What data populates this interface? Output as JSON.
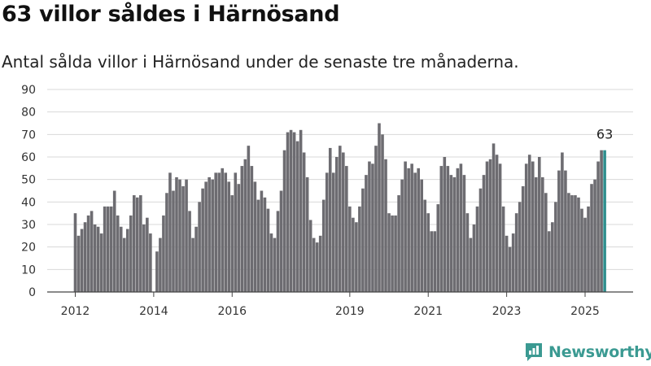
{
  "title": "63 villor såldes i Härnösand",
  "subtitle": "Antal sålda villor i Härnösand under de senaste tre månaderna.",
  "brand": "Newsworthy",
  "colors": {
    "bar": "#6d6c71",
    "highlight": "#2f8f8e",
    "grid": "#d8d8d8",
    "brand": "#3b9a92"
  },
  "chart_data": {
    "type": "bar",
    "ylim": [
      0,
      90
    ],
    "yticks": [
      0,
      10,
      20,
      30,
      40,
      50,
      60,
      70,
      80,
      90
    ],
    "xticks": [
      {
        "label": "2012",
        "month": "2012-01"
      },
      {
        "label": "2014",
        "month": "2014-01"
      },
      {
        "label": "2016",
        "month": "2016-01"
      },
      {
        "label": "2019",
        "month": "2019-01"
      },
      {
        "label": "2021",
        "month": "2021-01"
      },
      {
        "label": "2023",
        "month": "2023-01"
      },
      {
        "label": "2025",
        "month": "2025-01"
      }
    ],
    "start_month": "2012-01",
    "values": [
      35,
      25,
      28,
      31,
      34,
      36,
      30,
      29,
      26,
      38,
      38,
      38,
      45,
      34,
      29,
      24,
      28,
      34,
      43,
      42,
      43,
      30,
      33,
      26,
      null,
      18,
      24,
      34,
      44,
      53,
      45,
      51,
      50,
      47,
      50,
      36,
      24,
      29,
      40,
      46,
      49,
      51,
      50,
      53,
      53,
      55,
      53,
      49,
      43,
      53,
      48,
      56,
      59,
      65,
      56,
      49,
      41,
      45,
      42,
      37,
      26,
      24,
      36,
      45,
      63,
      71,
      72,
      71,
      67,
      72,
      62,
      51,
      32,
      24,
      22,
      25,
      41,
      53,
      64,
      53,
      60,
      65,
      62,
      56,
      38,
      33,
      31,
      38,
      46,
      52,
      58,
      57,
      65,
      75,
      70,
      59,
      35,
      34,
      34,
      43,
      50,
      58,
      55,
      57,
      53,
      55,
      50,
      41,
      35,
      27,
      27,
      39,
      56,
      60,
      56,
      52,
      51,
      55,
      57,
      52,
      35,
      24,
      30,
      38,
      46,
      52,
      58,
      59,
      66,
      61,
      57,
      38,
      25,
      20,
      26,
      35,
      40,
      47,
      57,
      61,
      58,
      51,
      60,
      51,
      44,
      27,
      31,
      40,
      54,
      62,
      54,
      44,
      43,
      43,
      42,
      37,
      33,
      38,
      48,
      50,
      58,
      63,
      63
    ],
    "highlight_label": "63"
  }
}
